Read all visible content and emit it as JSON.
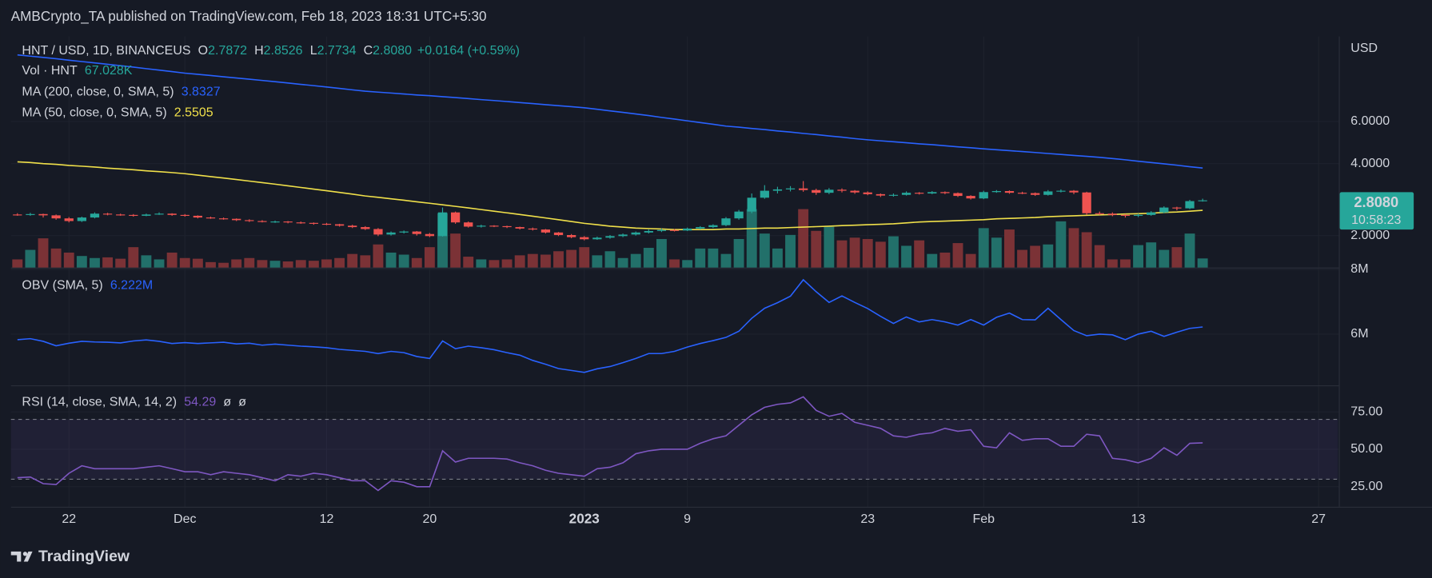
{
  "header": {
    "title": "AMBCrypto_TA published on TradingView.com, Feb 18, 2023 18:31 UTC+5:30"
  },
  "chart_data": {
    "type": "candlestick",
    "currency": "USD",
    "log_scale": true,
    "grid": true,
    "up_color": "#26a69a",
    "down_color": "#ef5350",
    "legend": {
      "symbol": "HNT / USD, 1D, BINANCEUS",
      "o_label": "O",
      "open": "2.7872",
      "h_label": "H",
      "high": "2.8526",
      "l_label": "L",
      "low": "2.7734",
      "c_label": "C",
      "close": "2.8080",
      "change": "+0.0164 (+0.59%)",
      "countdown": "10:58:23"
    },
    "categories": [
      null,
      null,
      null,
      null,
      "22",
      null,
      null,
      null,
      null,
      null,
      null,
      null,
      null,
      "Dec",
      null,
      null,
      null,
      null,
      null,
      null,
      null,
      null,
      null,
      null,
      "12",
      null,
      null,
      null,
      null,
      null,
      null,
      null,
      "20",
      null,
      null,
      null,
      null,
      null,
      null,
      null,
      null,
      null,
      null,
      null,
      "2023",
      null,
      null,
      null,
      null,
      null,
      null,
      null,
      "9",
      null,
      null,
      null,
      null,
      null,
      null,
      null,
      null,
      null,
      null,
      null,
      null,
      null,
      "23",
      null,
      null,
      null,
      null,
      null,
      null,
      null,
      null,
      "Feb",
      null,
      null,
      null,
      null,
      null,
      null,
      null,
      null,
      null,
      null,
      null,
      "13",
      null,
      null,
      null,
      null,
      null,
      null,
      null,
      null,
      null,
      null,
      null,
      null,
      null,
      "27",
      null
    ],
    "candles": [
      [
        2.45,
        2.48,
        2.42,
        2.44
      ],
      [
        2.44,
        2.49,
        2.42,
        2.46
      ],
      [
        2.46,
        2.47,
        2.38,
        2.43
      ],
      [
        2.43,
        2.45,
        2.33,
        2.36
      ],
      [
        2.36,
        2.39,
        2.27,
        2.3
      ],
      [
        2.3,
        2.4,
        2.28,
        2.38
      ],
      [
        2.38,
        2.5,
        2.36,
        2.47
      ],
      [
        2.47,
        2.49,
        2.43,
        2.45
      ],
      [
        2.45,
        2.47,
        2.42,
        2.44
      ],
      [
        2.44,
        2.46,
        2.4,
        2.42
      ],
      [
        2.42,
        2.47,
        2.41,
        2.45
      ],
      [
        2.45,
        2.5,
        2.44,
        2.47
      ],
      [
        2.47,
        2.48,
        2.42,
        2.44
      ],
      [
        2.44,
        2.46,
        2.4,
        2.42
      ],
      [
        2.42,
        2.43,
        2.36,
        2.38
      ],
      [
        2.38,
        2.4,
        2.35,
        2.36
      ],
      [
        2.36,
        2.38,
        2.33,
        2.35
      ],
      [
        2.35,
        2.36,
        2.3,
        2.32
      ],
      [
        2.32,
        2.34,
        2.28,
        2.3
      ],
      [
        2.3,
        2.32,
        2.27,
        2.28
      ],
      [
        2.28,
        2.31,
        2.26,
        2.29
      ],
      [
        2.29,
        2.3,
        2.25,
        2.27
      ],
      [
        2.27,
        2.29,
        2.24,
        2.26
      ],
      [
        2.26,
        2.27,
        2.22,
        2.24
      ],
      [
        2.24,
        2.26,
        2.21,
        2.23
      ],
      [
        2.23,
        2.24,
        2.18,
        2.2
      ],
      [
        2.2,
        2.22,
        2.15,
        2.17
      ],
      [
        2.17,
        2.19,
        2.11,
        2.13
      ],
      [
        2.13,
        2.15,
        1.99,
        2.02
      ],
      [
        2.02,
        2.08,
        2.0,
        2.06
      ],
      [
        2.06,
        2.1,
        2.04,
        2.08
      ],
      [
        2.08,
        2.09,
        2.0,
        2.03
      ],
      [
        2.03,
        2.05,
        1.97,
        1.99
      ],
      [
        1.99,
        2.62,
        1.98,
        2.5
      ],
      [
        2.5,
        2.52,
        2.24,
        2.27
      ],
      [
        2.27,
        2.29,
        2.16,
        2.18
      ],
      [
        2.18,
        2.22,
        2.16,
        2.2
      ],
      [
        2.2,
        2.21,
        2.17,
        2.19
      ],
      [
        2.19,
        2.2,
        2.15,
        2.17
      ],
      [
        2.17,
        2.18,
        2.12,
        2.14
      ],
      [
        2.14,
        2.16,
        2.1,
        2.12
      ],
      [
        2.12,
        2.13,
        2.04,
        2.06
      ],
      [
        2.06,
        2.07,
        1.99,
        2.01
      ],
      [
        2.01,
        2.03,
        1.95,
        1.97
      ],
      [
        1.97,
        1.99,
        1.91,
        1.93
      ],
      [
        1.93,
        1.98,
        1.92,
        1.96
      ],
      [
        1.96,
        2.01,
        1.94,
        1.99
      ],
      [
        1.99,
        2.04,
        1.97,
        2.02
      ],
      [
        2.02,
        2.08,
        2.0,
        2.06
      ],
      [
        2.06,
        2.12,
        2.04,
        2.09
      ],
      [
        2.09,
        2.14,
        2.07,
        2.11
      ],
      [
        2.11,
        2.13,
        2.08,
        2.1
      ],
      [
        2.1,
        2.16,
        2.09,
        2.14
      ],
      [
        2.14,
        2.19,
        2.12,
        2.17
      ],
      [
        2.17,
        2.23,
        2.15,
        2.21
      ],
      [
        2.21,
        2.39,
        2.19,
        2.36
      ],
      [
        2.36,
        2.56,
        2.33,
        2.52
      ],
      [
        2.52,
        3.0,
        2.48,
        2.88
      ],
      [
        2.88,
        3.25,
        2.85,
        3.08
      ],
      [
        3.08,
        3.2,
        3.0,
        3.12
      ],
      [
        3.12,
        3.22,
        3.06,
        3.15
      ],
      [
        3.15,
        3.38,
        3.05,
        3.1
      ],
      [
        3.1,
        3.14,
        2.96,
        3.02
      ],
      [
        3.02,
        3.16,
        2.98,
        3.11
      ],
      [
        3.11,
        3.15,
        3.03,
        3.08
      ],
      [
        3.08,
        3.1,
        2.99,
        3.03
      ],
      [
        3.03,
        3.06,
        2.95,
        2.98
      ],
      [
        2.98,
        3.0,
        2.9,
        2.94
      ],
      [
        2.94,
        3.0,
        2.91,
        2.96
      ],
      [
        2.96,
        3.06,
        2.94,
        3.02
      ],
      [
        3.02,
        3.04,
        2.97,
        3.0
      ],
      [
        3.0,
        3.07,
        2.98,
        3.04
      ],
      [
        3.04,
        3.06,
        2.98,
        3.01
      ],
      [
        3.01,
        3.03,
        2.9,
        2.93
      ],
      [
        2.93,
        2.95,
        2.83,
        2.86
      ],
      [
        2.86,
        3.08,
        2.84,
        3.04
      ],
      [
        3.04,
        3.1,
        3.02,
        3.07
      ],
      [
        3.07,
        3.09,
        2.99,
        3.02
      ],
      [
        3.02,
        3.05,
        2.98,
        3.01
      ],
      [
        3.01,
        3.03,
        2.93,
        2.96
      ],
      [
        2.96,
        3.1,
        2.94,
        3.06
      ],
      [
        3.06,
        3.12,
        3.03,
        3.08
      ],
      [
        3.08,
        3.1,
        2.98,
        3.03
      ],
      [
        3.03,
        3.05,
        2.44,
        2.48
      ],
      [
        2.48,
        2.52,
        2.44,
        2.47
      ],
      [
        2.47,
        2.5,
        2.41,
        2.44
      ],
      [
        2.44,
        2.46,
        2.38,
        2.42
      ],
      [
        2.42,
        2.47,
        2.39,
        2.44
      ],
      [
        2.44,
        2.53,
        2.42,
        2.5
      ],
      [
        2.5,
        2.65,
        2.48,
        2.62
      ],
      [
        2.62,
        2.64,
        2.55,
        2.6
      ],
      [
        2.6,
        2.82,
        2.58,
        2.7872
      ],
      [
        2.7872,
        2.8526,
        2.7734,
        2.808
      ],
      null,
      null,
      null,
      null,
      null,
      null,
      null,
      null,
      null,
      null
    ],
    "ylim": [
      1.47,
      13.6
    ],
    "yticks": [
      {
        "value": 2,
        "label": "2.0000"
      },
      {
        "value": 4,
        "label": "4.0000"
      },
      {
        "value": 6,
        "label": "6.0000"
      }
    ],
    "volume": {
      "name": "Vol · HNT",
      "value_label": "67.028K",
      "up_color": "#22706a",
      "down_color": "#7b3236",
      "ylim": [
        0,
        1700000
      ],
      "values": [
        60000,
        130000,
        215000,
        140000,
        110000,
        85000,
        70000,
        75000,
        65000,
        150000,
        90000,
        60000,
        110000,
        70000,
        65000,
        40000,
        35000,
        60000,
        70000,
        55000,
        50000,
        45000,
        55000,
        50000,
        60000,
        70000,
        100000,
        90000,
        170000,
        110000,
        95000,
        70000,
        150000,
        400000,
        250000,
        80000,
        60000,
        55000,
        60000,
        90000,
        100000,
        95000,
        120000,
        130000,
        150000,
        90000,
        120000,
        70000,
        100000,
        145000,
        210000,
        60000,
        55000,
        140000,
        140000,
        100000,
        210000,
        430000,
        250000,
        140000,
        240000,
        430000,
        270000,
        300000,
        200000,
        220000,
        210000,
        190000,
        230000,
        160000,
        200000,
        100000,
        110000,
        180000,
        100000,
        290000,
        220000,
        280000,
        130000,
        160000,
        170000,
        340000,
        290000,
        260000,
        165000,
        60000,
        60000,
        165000,
        185000,
        130000,
        150000,
        250000,
        67028,
        null,
        null,
        null,
        null,
        null,
        null,
        null,
        null,
        null,
        null
      ]
    },
    "ma200": {
      "name": "MA (200, close, 0, SMA, 5)",
      "color": "#2962ff",
      "values": [
        11.4,
        11.26,
        11.12,
        10.98,
        10.83,
        10.69,
        10.55,
        10.41,
        10.27,
        10.13,
        9.98,
        9.84,
        9.7,
        9.56,
        9.45,
        9.34,
        9.23,
        9.12,
        9.02,
        8.91,
        8.8,
        8.69,
        8.58,
        8.47,
        8.36,
        8.25,
        8.14,
        8.03,
        7.96,
        7.89,
        7.82,
        7.75,
        7.69,
        7.62,
        7.55,
        7.48,
        7.41,
        7.34,
        7.27,
        7.2,
        7.13,
        7.06,
        6.99,
        6.92,
        6.85,
        6.75,
        6.65,
        6.55,
        6.45,
        6.35,
        6.24,
        6.14,
        6.04,
        5.94,
        5.84,
        5.74,
        5.68,
        5.61,
        5.55,
        5.48,
        5.42,
        5.35,
        5.29,
        5.22,
        5.16,
        5.09,
        5.03,
        4.98,
        4.94,
        4.89,
        4.84,
        4.8,
        4.75,
        4.7,
        4.66,
        4.61,
        4.57,
        4.53,
        4.49,
        4.45,
        4.41,
        4.37,
        4.33,
        4.29,
        4.25,
        4.2,
        4.15,
        4.09,
        4.04,
        3.99,
        3.94,
        3.88,
        3.8327,
        null,
        null,
        null,
        null,
        null,
        null,
        null,
        null,
        null,
        null
      ]
    },
    "ma50": {
      "name": "MA (50, close, 0, SMA, 5)",
      "color": "#f0e04a",
      "values": [
        4.07,
        4.04,
        4.0,
        3.97,
        3.93,
        3.9,
        3.87,
        3.83,
        3.8,
        3.77,
        3.73,
        3.7,
        3.67,
        3.63,
        3.58,
        3.53,
        3.48,
        3.43,
        3.38,
        3.33,
        3.28,
        3.23,
        3.18,
        3.13,
        3.08,
        3.03,
        2.98,
        2.93,
        2.89,
        2.85,
        2.81,
        2.77,
        2.73,
        2.69,
        2.65,
        2.61,
        2.57,
        2.53,
        2.49,
        2.45,
        2.41,
        2.37,
        2.33,
        2.29,
        2.25,
        2.22,
        2.19,
        2.17,
        2.15,
        2.14,
        2.13,
        2.12,
        2.12,
        2.12,
        2.12,
        2.13,
        2.13,
        2.14,
        2.15,
        2.15,
        2.16,
        2.17,
        2.18,
        2.19,
        2.2,
        2.21,
        2.22,
        2.23,
        2.24,
        2.26,
        2.28,
        2.29,
        2.3,
        2.31,
        2.32,
        2.33,
        2.35,
        2.36,
        2.37,
        2.38,
        2.4,
        2.41,
        2.42,
        2.43,
        2.44,
        2.45,
        2.46,
        2.47,
        2.48,
        2.5,
        2.51,
        2.53,
        2.5505,
        null,
        null,
        null,
        null,
        null,
        null,
        null,
        null,
        null,
        null
      ]
    },
    "obv": {
      "name": "OBV (SMA, 5)",
      "value_label": "6.222M",
      "color": "#2962ff",
      "ylim": [
        4420000,
        8000000
      ],
      "yticks": [
        {
          "value": 6000000,
          "label": "6M"
        },
        {
          "value": 8000000,
          "label": "8M"
        }
      ],
      "values": [
        5830000,
        5860000,
        5780000,
        5640000,
        5720000,
        5780000,
        5760000,
        5750000,
        5730000,
        5790000,
        5820000,
        5780000,
        5710000,
        5740000,
        5710000,
        5730000,
        5750000,
        5700000,
        5720000,
        5660000,
        5690000,
        5660000,
        5630000,
        5610000,
        5580000,
        5530000,
        5500000,
        5470000,
        5400000,
        5470000,
        5430000,
        5310000,
        5250000,
        5790000,
        5550000,
        5630000,
        5580000,
        5520000,
        5430000,
        5350000,
        5190000,
        5070000,
        4940000,
        4880000,
        4820000,
        4930000,
        5000000,
        5120000,
        5250000,
        5400000,
        5400000,
        5470000,
        5600000,
        5710000,
        5800000,
        5900000,
        6090000,
        6490000,
        6800000,
        6970000,
        7170000,
        7680000,
        7310000,
        6980000,
        7180000,
        6980000,
        6790000,
        6550000,
        6330000,
        6530000,
        6380000,
        6450000,
        6380000,
        6280000,
        6450000,
        6280000,
        6520000,
        6650000,
        6450000,
        6440000,
        6800000,
        6450000,
        6110000,
        5950000,
        6000000,
        5980000,
        5830000,
        6000000,
        6090000,
        5930000,
        6060000,
        6180000,
        6222000,
        null,
        null,
        null,
        null,
        null,
        null,
        null,
        null,
        null,
        null
      ]
    },
    "rsi": {
      "name": "RSI (14, close, SMA, 14, 2)",
      "color": "#7e57c2",
      "band_color": "#7e57c2",
      "na_values": [
        "ø",
        "ø"
      ],
      "ylim": [
        11.6,
        92.7
      ],
      "bands": [
        30,
        70
      ],
      "yticks": [
        {
          "value": 25,
          "label": "25.00"
        },
        {
          "value": 50,
          "label": "50.00"
        },
        {
          "value": 75,
          "label": "75.00"
        }
      ],
      "values": [
        31,
        31.5,
        27,
        26.5,
        34,
        39,
        37,
        37,
        37,
        37,
        38,
        39,
        37,
        35,
        35,
        33,
        35,
        34,
        33,
        31,
        29,
        33,
        32,
        34,
        33,
        31,
        29,
        29,
        22.5,
        29,
        28,
        25,
        25,
        49,
        41.5,
        44,
        44,
        44,
        43.5,
        41,
        39,
        36,
        34,
        33,
        32,
        37,
        38,
        41,
        47,
        49,
        50,
        50,
        50,
        54,
        57,
        59,
        66,
        73,
        78,
        80,
        81,
        85,
        76,
        72,
        74,
        68,
        66,
        64,
        59,
        58,
        60,
        61,
        64,
        62,
        63,
        52,
        51,
        61,
        56,
        57,
        57,
        52,
        52,
        60,
        59,
        44,
        43,
        41,
        44,
        51,
        46,
        54,
        54.29,
        null,
        null,
        null,
        null,
        null,
        null,
        null,
        null,
        null,
        null
      ]
    }
  },
  "footer": {
    "brand": "TradingView"
  }
}
